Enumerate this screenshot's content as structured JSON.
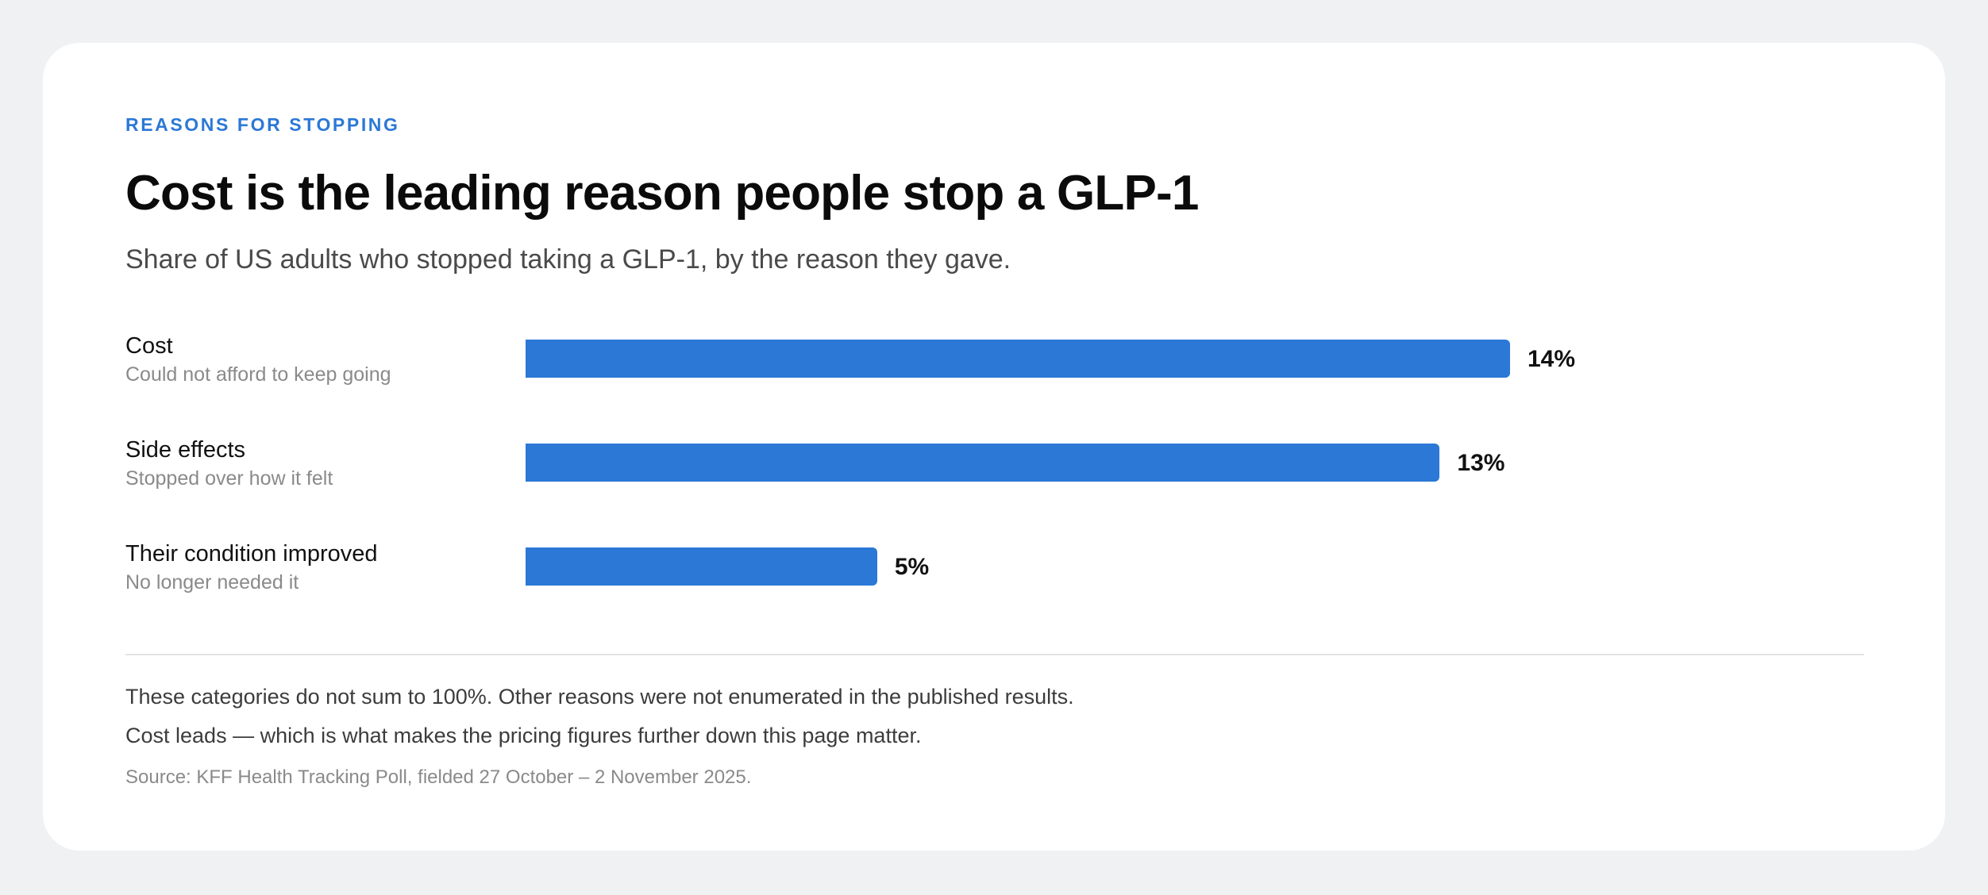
{
  "eyebrow": "REASONS FOR STOPPING",
  "title": "Cost is the leading reason people stop a GLP-1",
  "subtitle": "Share of US adults who stopped taking a GLP-1, by the reason they gave.",
  "colors": {
    "accent": "#2b78d6",
    "background": "#f0f1f3",
    "card": "#ffffff"
  },
  "chart_data": {
    "type": "bar",
    "orientation": "horizontal",
    "categories": [
      "Cost",
      "Side effects",
      "Their condition improved"
    ],
    "descriptions": [
      "Could not afford to keep going",
      "Stopped over how it felt",
      "No longer needed it"
    ],
    "values": [
      14,
      13,
      5
    ],
    "value_labels": [
      "14%",
      "13%",
      "5%"
    ],
    "unit": "%",
    "xlim": [
      0,
      20
    ],
    "grid": false,
    "legend": "none"
  },
  "notes": [
    "These categories do not sum to 100%. Other reasons were not enumerated in the published results.",
    "Cost leads — which is what makes the pricing figures further down this page matter."
  ],
  "source": "Source: KFF Health Tracking Poll, fielded 27 October – 2 November 2025."
}
